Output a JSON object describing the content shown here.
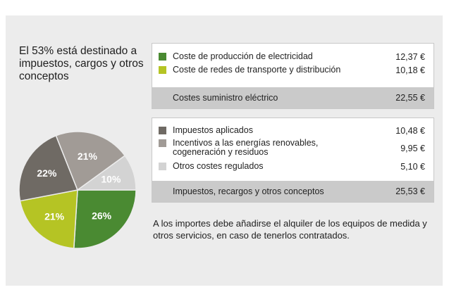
{
  "heading": "El 53% está destinado a impuestos, cargos y otros conceptos",
  "note": "A los importes debe añadirse el alquiler de los equipos de medida y otros servicios, en caso de tenerlos contratados.",
  "supply": {
    "items": [
      {
        "label": "Coste de producción de electricidad",
        "value": "12,37 €",
        "color": "#4a8a32"
      },
      {
        "label": "Coste de redes de transporte y distribución",
        "value": "10,18 €",
        "color": "#b5c424"
      }
    ],
    "total_label": "Costes suministro eléctrico",
    "total_value": "22,55 €"
  },
  "taxes": {
    "items": [
      {
        "label": "Impuestos aplicados",
        "value": "10,48 €",
        "color": "#6f6a64"
      },
      {
        "label": "Incentivos a las energías renovables, cogeneración y residuos",
        "value": "9,95 €",
        "color": "#a19b96"
      },
      {
        "label": "Otros costes regulados",
        "value": "5,10 €",
        "color": "#d3d3d3"
      }
    ],
    "total_label": "Impuestos, recargos y otros conceptos",
    "total_value": "25,53 €"
  },
  "chart_data": {
    "type": "pie",
    "categories": [
      "Coste de producción de electricidad",
      "Coste de redes de transporte y distribución",
      "Impuestos aplicados",
      "Incentivos a las energías renovables, cogeneración y residuos",
      "Otros costes regulados"
    ],
    "values": [
      26,
      21,
      22,
      21,
      10
    ],
    "labels": [
      "26%",
      "21%",
      "22%",
      "21%",
      "10%"
    ],
    "colors": [
      "#4a8a32",
      "#b5c424",
      "#6f6a64",
      "#a19b96",
      "#d3d3d3"
    ],
    "amounts": [
      12.37,
      10.18,
      10.48,
      9.95,
      5.1
    ]
  }
}
